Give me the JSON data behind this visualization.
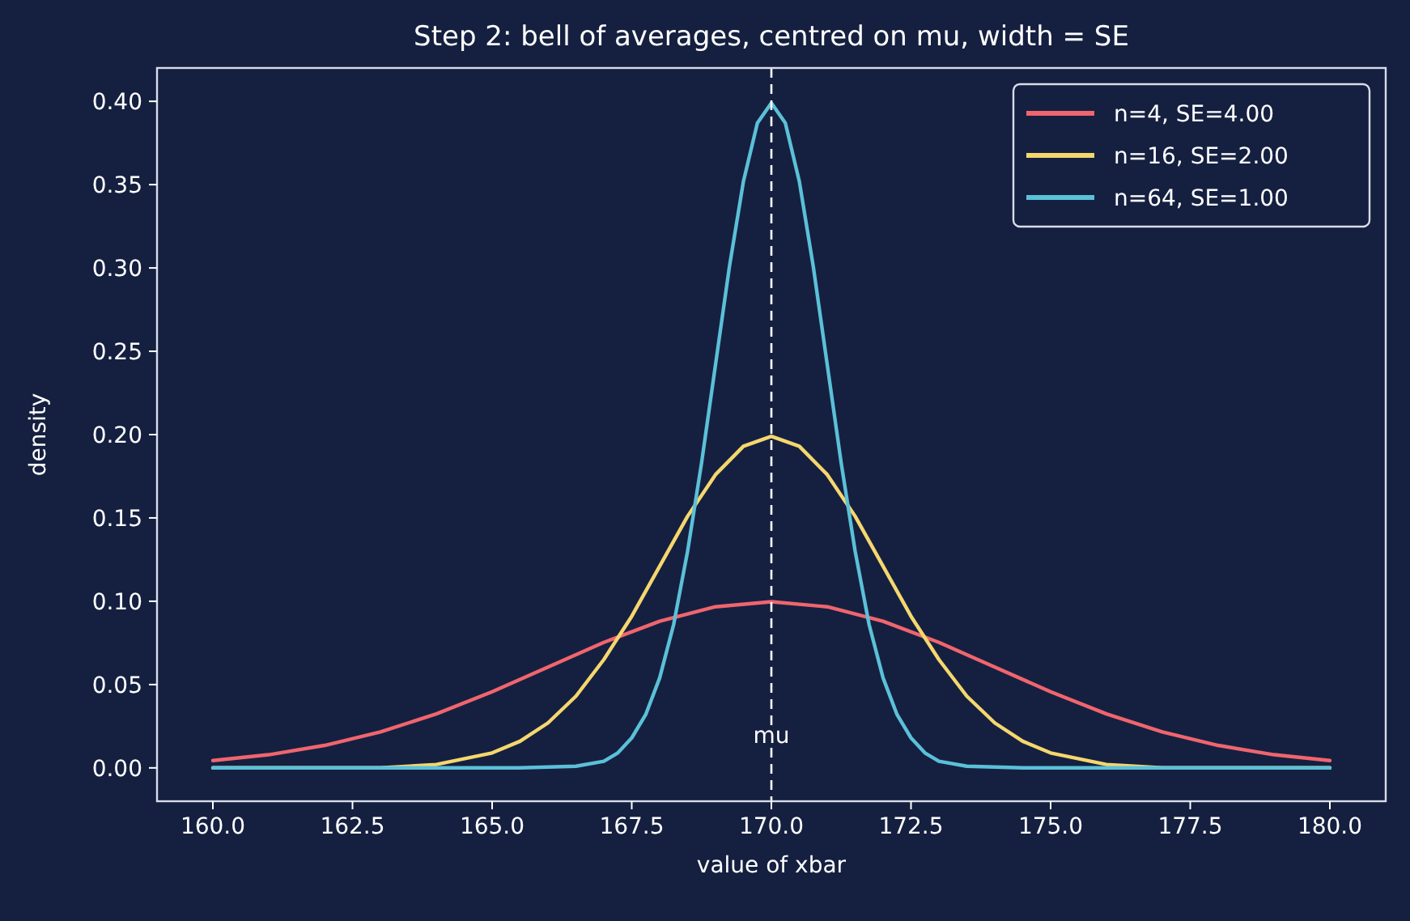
{
  "chart_data": {
    "type": "line",
    "title": "Step 2: bell of averages, centred on mu, width = SE",
    "xlabel": "value of xbar",
    "ylabel": "density",
    "xlim": [
      159,
      181
    ],
    "ylim": [
      -0.02,
      0.42
    ],
    "xticks": [
      {
        "value": 160,
        "label": "160.0"
      },
      {
        "value": 162.5,
        "label": "162.5"
      },
      {
        "value": 165,
        "label": "165.0"
      },
      {
        "value": 167.5,
        "label": "167.5"
      },
      {
        "value": 170,
        "label": "170.0"
      },
      {
        "value": 172.5,
        "label": "172.5"
      },
      {
        "value": 175,
        "label": "175.0"
      },
      {
        "value": 177.5,
        "label": "177.5"
      },
      {
        "value": 180,
        "label": "180.0"
      }
    ],
    "yticks": [
      {
        "value": 0,
        "label": "0.00"
      },
      {
        "value": 0.05,
        "label": "0.05"
      },
      {
        "value": 0.1,
        "label": "0.10"
      },
      {
        "value": 0.15,
        "label": "0.15"
      },
      {
        "value": 0.2,
        "label": "0.20"
      },
      {
        "value": 0.25,
        "label": "0.25"
      },
      {
        "value": 0.3,
        "label": "0.30"
      },
      {
        "value": 0.35,
        "label": "0.35"
      },
      {
        "value": 0.4,
        "label": "0.40"
      }
    ],
    "grid": false,
    "legend": "top right",
    "line_style": "solid",
    "marker": "none",
    "ref_lines": [
      {
        "axis": "x",
        "value": 170,
        "label": "mu",
        "color": "#ffffff",
        "line_style": "dashed"
      }
    ],
    "series": [
      {
        "name": "n=4, SE=4.00",
        "color": "#f0656e",
        "x": [
          160,
          161,
          162,
          163,
          164,
          165,
          166,
          167,
          168,
          169,
          170,
          171,
          172,
          173,
          174,
          175,
          176,
          177,
          178,
          179,
          180
        ],
        "values": [
          0.0044,
          0.0079,
          0.0135,
          0.0216,
          0.0324,
          0.0457,
          0.0605,
          0.0753,
          0.088,
          0.0967,
          0.0997,
          0.0967,
          0.088,
          0.0753,
          0.0605,
          0.0457,
          0.0324,
          0.0216,
          0.0135,
          0.0079,
          0.0044
        ]
      },
      {
        "name": "n=16, SE=2.00",
        "color": "#f5d76e",
        "x": [
          160,
          163,
          164,
          165,
          165.5,
          166,
          166.5,
          167,
          167.5,
          168,
          168.5,
          169,
          169.5,
          170,
          170.5,
          171,
          171.5,
          172,
          172.5,
          173,
          173.5,
          174,
          174.5,
          175,
          176,
          177,
          180
        ],
        "values": [
          0,
          0,
          0.002,
          0.009,
          0.016,
          0.027,
          0.043,
          0.065,
          0.091,
          0.121,
          0.151,
          0.176,
          0.193,
          0.199,
          0.193,
          0.176,
          0.151,
          0.121,
          0.091,
          0.065,
          0.043,
          0.027,
          0.016,
          0.009,
          0.002,
          0,
          0
        ]
      },
      {
        "name": "n=64, SE=1.00",
        "color": "#5bc0d8",
        "x": [
          160,
          165.5,
          166.5,
          167,
          167.25,
          167.5,
          167.75,
          168,
          168.25,
          168.5,
          168.75,
          169,
          169.25,
          169.5,
          169.75,
          170,
          170.25,
          170.5,
          170.75,
          171,
          171.25,
          171.5,
          171.75,
          172,
          172.25,
          172.5,
          172.75,
          173,
          173.5,
          174.5,
          180
        ],
        "values": [
          0,
          0,
          0.001,
          0.004,
          0.009,
          0.018,
          0.032,
          0.054,
          0.086,
          0.13,
          0.183,
          0.242,
          0.301,
          0.352,
          0.387,
          0.399,
          0.387,
          0.352,
          0.301,
          0.242,
          0.183,
          0.13,
          0.086,
          0.054,
          0.032,
          0.018,
          0.009,
          0.004,
          0.001,
          0,
          0
        ]
      }
    ]
  }
}
